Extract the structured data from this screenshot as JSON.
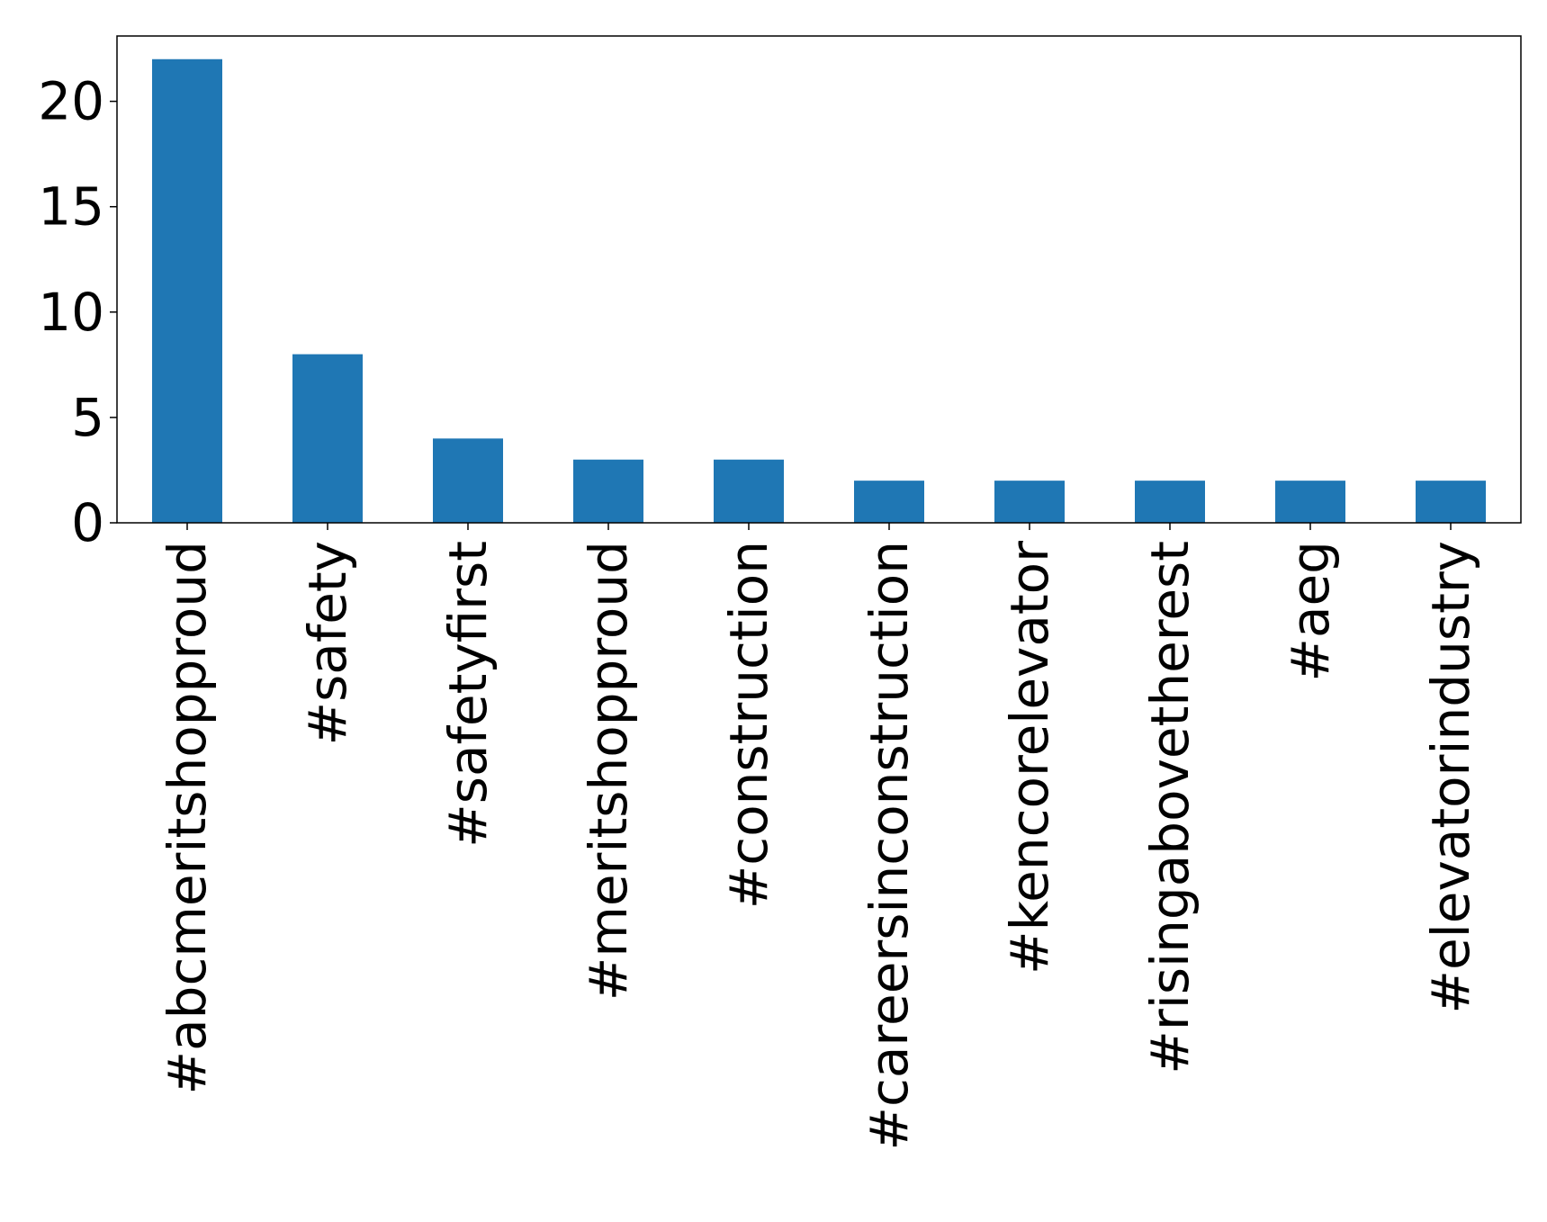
{
  "chart_data": {
    "type": "bar",
    "title": "",
    "xlabel": "",
    "ylabel": "",
    "categories": [
      "#abcmeritshopproud",
      "#safety",
      "#safetyfirst",
      "#meritshopproud",
      "#construction",
      "#careersinconstruction",
      "#kencorelevator",
      "#risingabovetherest",
      "#aeg",
      "#elevatorindustry"
    ],
    "values": [
      22,
      8,
      4,
      3,
      3,
      2,
      2,
      2,
      2,
      2
    ],
    "ylim": [
      0,
      23.1
    ],
    "yticks": [
      0,
      5,
      10,
      15,
      20
    ],
    "bar_color": "#1f77b4",
    "grid": false,
    "legend": "none"
  }
}
